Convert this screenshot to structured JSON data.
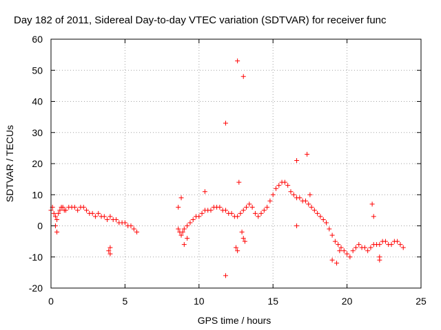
{
  "chart_data": {
    "type": "scatter",
    "title": "Day 182 of 2011, Sidereal Day-to-day VTEC variation (SDTVAR) for receiver func",
    "xlabel": "GPS time / hours",
    "ylabel": "SDTVAR / TECUs",
    "xlim": [
      0,
      25
    ],
    "ylim": [
      -20,
      60
    ],
    "xticks": [
      0,
      5,
      10,
      15,
      20,
      25
    ],
    "yticks": [
      -20,
      -10,
      0,
      10,
      20,
      30,
      40,
      50,
      60
    ],
    "xtick_labels": [
      "0",
      "5",
      "10",
      "15",
      "20",
      "25"
    ],
    "ytick_labels": [
      "-20",
      "-10",
      "0",
      "10",
      "20",
      "30",
      "40",
      "50",
      "60"
    ],
    "grid": true,
    "marker": "plus",
    "color": "#ff0000",
    "series": [
      {
        "name": "SDTVAR",
        "x": [
          0.0,
          0.1,
          0.2,
          0.3,
          0.4,
          0.5,
          0.6,
          0.7,
          0.8,
          0.9,
          1.0,
          1.2,
          1.4,
          1.6,
          1.8,
          2.0,
          2.2,
          2.4,
          2.6,
          2.8,
          3.0,
          3.2,
          3.4,
          3.6,
          3.8,
          4.0,
          4.2,
          4.4,
          4.6,
          4.8,
          5.0,
          5.2,
          5.4,
          5.6,
          5.8,
          0.3,
          0.4,
          3.9,
          4.0,
          4.0,
          8.6,
          8.7,
          8.8,
          8.9,
          9.0,
          9.2,
          9.4,
          9.6,
          9.8,
          10.0,
          10.2,
          10.4,
          10.6,
          10.8,
          11.0,
          11.2,
          11.4,
          11.6,
          11.8,
          12.0,
          12.2,
          12.4,
          12.6,
          12.8,
          13.0,
          13.2,
          13.4,
          13.6,
          13.8,
          14.0,
          14.2,
          14.4,
          14.6,
          14.8,
          15.0,
          15.2,
          15.4,
          15.6,
          15.8,
          16.0,
          16.2,
          16.4,
          16.6,
          16.8,
          17.0,
          17.2,
          17.4,
          17.6,
          17.8,
          18.0,
          18.2,
          18.4,
          18.6,
          18.8,
          19.0,
          19.2,
          19.4,
          19.6,
          19.8,
          20.0,
          20.2,
          20.4,
          20.6,
          20.8,
          21.0,
          21.2,
          21.4,
          21.6,
          21.8,
          22.0,
          22.2,
          22.4,
          22.6,
          22.8,
          23.0,
          23.2,
          23.4,
          23.6,
          23.8,
          8.6,
          8.8,
          9.0,
          9.2,
          10.4,
          11.8,
          11.8,
          12.6,
          12.7,
          13.0,
          12.5,
          12.6,
          12.9,
          13.0,
          13.1,
          16.6,
          16.6,
          17.3,
          17.5,
          19.0,
          19.3,
          19.5,
          21.7,
          21.8,
          22.2,
          22.2
        ],
        "y": [
          5,
          6,
          4,
          3,
          2,
          4,
          5,
          6,
          6,
          5,
          5,
          6,
          6,
          6,
          5,
          6,
          6,
          5,
          4,
          4,
          3,
          4,
          3,
          3,
          2,
          3,
          2,
          2,
          1,
          1,
          1,
          0,
          0,
          -1,
          -2,
          0,
          -2,
          -8,
          -7,
          -9,
          -1,
          -2,
          -3,
          -2,
          -1,
          0,
          1,
          2,
          3,
          3,
          4,
          5,
          5,
          5,
          6,
          6,
          6,
          5,
          5,
          4,
          4,
          3,
          3,
          4,
          5,
          6,
          7,
          6,
          4,
          3,
          4,
          5,
          6,
          8,
          10,
          12,
          13,
          14,
          14,
          13,
          11,
          10,
          9,
          9,
          8,
          8,
          7,
          6,
          5,
          4,
          3,
          2,
          1,
          -1,
          -3,
          -5,
          -6,
          -7,
          -8,
          -9,
          -10,
          -8,
          -7,
          -6,
          -7,
          -7,
          -8,
          -7,
          -6,
          -6,
          -6,
          -5,
          -5,
          -6,
          -6,
          -5,
          -5,
          -6,
          -7,
          6,
          9,
          -6,
          -4,
          11,
          33,
          -16,
          53,
          14,
          48,
          -7,
          -8,
          -2,
          -4,
          -5,
          21,
          0,
          23,
          10,
          -11,
          -12,
          -8,
          7,
          3,
          -10,
          -11
        ]
      }
    ]
  }
}
